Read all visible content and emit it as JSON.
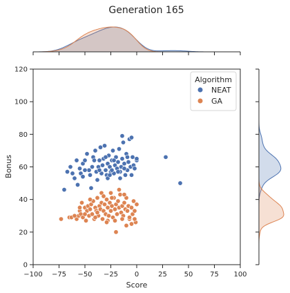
{
  "chart_data": {
    "type": "scatter",
    "title": "Generation 165",
    "xlabel": "Score",
    "ylabel": "Bonus",
    "xlim": [
      -100,
      100
    ],
    "ylim": [
      0,
      120
    ],
    "xticks": [
      -100,
      -75,
      -50,
      -25,
      0,
      25,
      50,
      75,
      100
    ],
    "yticks": [
      0,
      20,
      40,
      60,
      80,
      100,
      120
    ],
    "grid": false,
    "legend": {
      "title": "Algorithm",
      "placement": "top-right"
    },
    "marginals": {
      "top": "kde",
      "right": "kde",
      "fill": true
    },
    "series": [
      {
        "name": "NEAT",
        "color": "#4c72b0",
        "points": [
          [
            -67,
            57
          ],
          [
            -70,
            46
          ],
          [
            -64,
            60
          ],
          [
            -60,
            53
          ],
          [
            -57,
            49
          ],
          [
            -55,
            59
          ],
          [
            -54,
            56
          ],
          [
            -52,
            62
          ],
          [
            -50,
            64
          ],
          [
            -48,
            68
          ],
          [
            -46,
            58
          ],
          [
            -45,
            55
          ],
          [
            -43,
            60
          ],
          [
            -42,
            66
          ],
          [
            -40,
            70
          ],
          [
            -39,
            57
          ],
          [
            -38,
            52
          ],
          [
            -37,
            60
          ],
          [
            -36,
            64
          ],
          [
            -35,
            72
          ],
          [
            -34,
            56
          ],
          [
            -33,
            61
          ],
          [
            -32,
            65
          ],
          [
            -31,
            73
          ],
          [
            -30,
            58
          ],
          [
            -29,
            55
          ],
          [
            -28,
            62
          ],
          [
            -27,
            67
          ],
          [
            -26,
            60
          ],
          [
            -25,
            57
          ],
          [
            -24,
            64
          ],
          [
            -23,
            70
          ],
          [
            -22,
            56
          ],
          [
            -21,
            61
          ],
          [
            -20,
            66
          ],
          [
            -19,
            59
          ],
          [
            -18,
            63
          ],
          [
            -17,
            71
          ],
          [
            -16,
            57
          ],
          [
            -15,
            60
          ],
          [
            -14,
            65
          ],
          [
            -13,
            75
          ],
          [
            -12,
            62
          ],
          [
            -11,
            55
          ],
          [
            -10,
            68
          ],
          [
            -9,
            58
          ],
          [
            -8,
            63
          ],
          [
            -7,
            77
          ],
          [
            -6,
            60
          ],
          [
            -5,
            55
          ],
          [
            -4,
            66
          ],
          [
            -3,
            61
          ],
          [
            -2,
            59
          ],
          [
            0,
            64
          ],
          [
            -44,
            47
          ],
          [
            -28,
            53
          ],
          [
            -16,
            53
          ],
          [
            -50,
            58
          ],
          [
            -36,
            58
          ],
          [
            -24,
            58
          ],
          [
            -14,
            79
          ],
          [
            -58,
            64
          ],
          [
            -41,
            64
          ],
          [
            -22,
            64
          ],
          [
            -9,
            66
          ],
          [
            -5,
            78
          ],
          [
            -26,
            55
          ],
          [
            -52,
            54
          ],
          [
            -62,
            56
          ],
          [
            -18,
            57
          ],
          [
            0,
            65
          ],
          [
            -30,
            66
          ],
          [
            -12,
            59
          ],
          [
            28,
            66
          ],
          [
            42,
            50
          ]
        ]
      },
      {
        "name": "GA",
        "color": "#dd8452",
        "points": [
          [
            -73,
            28
          ],
          [
            -65,
            29
          ],
          [
            -63,
            29
          ],
          [
            -58,
            28
          ],
          [
            -56,
            30
          ],
          [
            -55,
            33
          ],
          [
            -54,
            31
          ],
          [
            -53,
            38
          ],
          [
            -52,
            29
          ],
          [
            -50,
            35
          ],
          [
            -49,
            27
          ],
          [
            -48,
            33
          ],
          [
            -47,
            36
          ],
          [
            -46,
            30
          ],
          [
            -45,
            34
          ],
          [
            -44,
            37
          ],
          [
            -43,
            31
          ],
          [
            -42,
            39
          ],
          [
            -41,
            28
          ],
          [
            -40,
            35
          ],
          [
            -39,
            33
          ],
          [
            -38,
            41
          ],
          [
            -37,
            30
          ],
          [
            -36,
            36
          ],
          [
            -35,
            34
          ],
          [
            -34,
            38
          ],
          [
            -33,
            28
          ],
          [
            -32,
            33
          ],
          [
            -31,
            37
          ],
          [
            -30,
            31
          ],
          [
            -29,
            40
          ],
          [
            -28,
            35
          ],
          [
            -27,
            30
          ],
          [
            -26,
            38
          ],
          [
            -25,
            33
          ],
          [
            -24,
            36
          ],
          [
            -23,
            29
          ],
          [
            -22,
            41
          ],
          [
            -21,
            34
          ],
          [
            -20,
            37
          ],
          [
            -19,
            31
          ],
          [
            -18,
            39
          ],
          [
            -17,
            35
          ],
          [
            -16,
            43
          ],
          [
            -15,
            32
          ],
          [
            -14,
            36
          ],
          [
            -13,
            30
          ],
          [
            -12,
            38
          ],
          [
            -11,
            34
          ],
          [
            -10,
            41
          ],
          [
            -9,
            33
          ],
          [
            -8,
            36
          ],
          [
            -7,
            28
          ],
          [
            -5,
            35
          ],
          [
            -4,
            31
          ],
          [
            -3,
            39
          ],
          [
            -2,
            33
          ],
          [
            0,
            37
          ],
          [
            -1,
            26
          ],
          [
            -5,
            25
          ],
          [
            -10,
            24
          ],
          [
            -20,
            20
          ],
          [
            -28,
            27
          ],
          [
            -34,
            44
          ],
          [
            -25,
            44
          ],
          [
            -17,
            46
          ],
          [
            -45,
            40
          ],
          [
            -38,
            32
          ],
          [
            -29,
            26
          ],
          [
            -21,
            27
          ],
          [
            -14,
            28
          ],
          [
            -7,
            29
          ],
          [
            -2,
            28
          ],
          [
            -32,
            42
          ],
          [
            -24,
            41
          ],
          [
            -12,
            43
          ],
          [
            -55,
            35
          ],
          [
            -60,
            30
          ],
          [
            -50,
            31
          ],
          [
            -40,
            29
          ]
        ]
      }
    ]
  }
}
